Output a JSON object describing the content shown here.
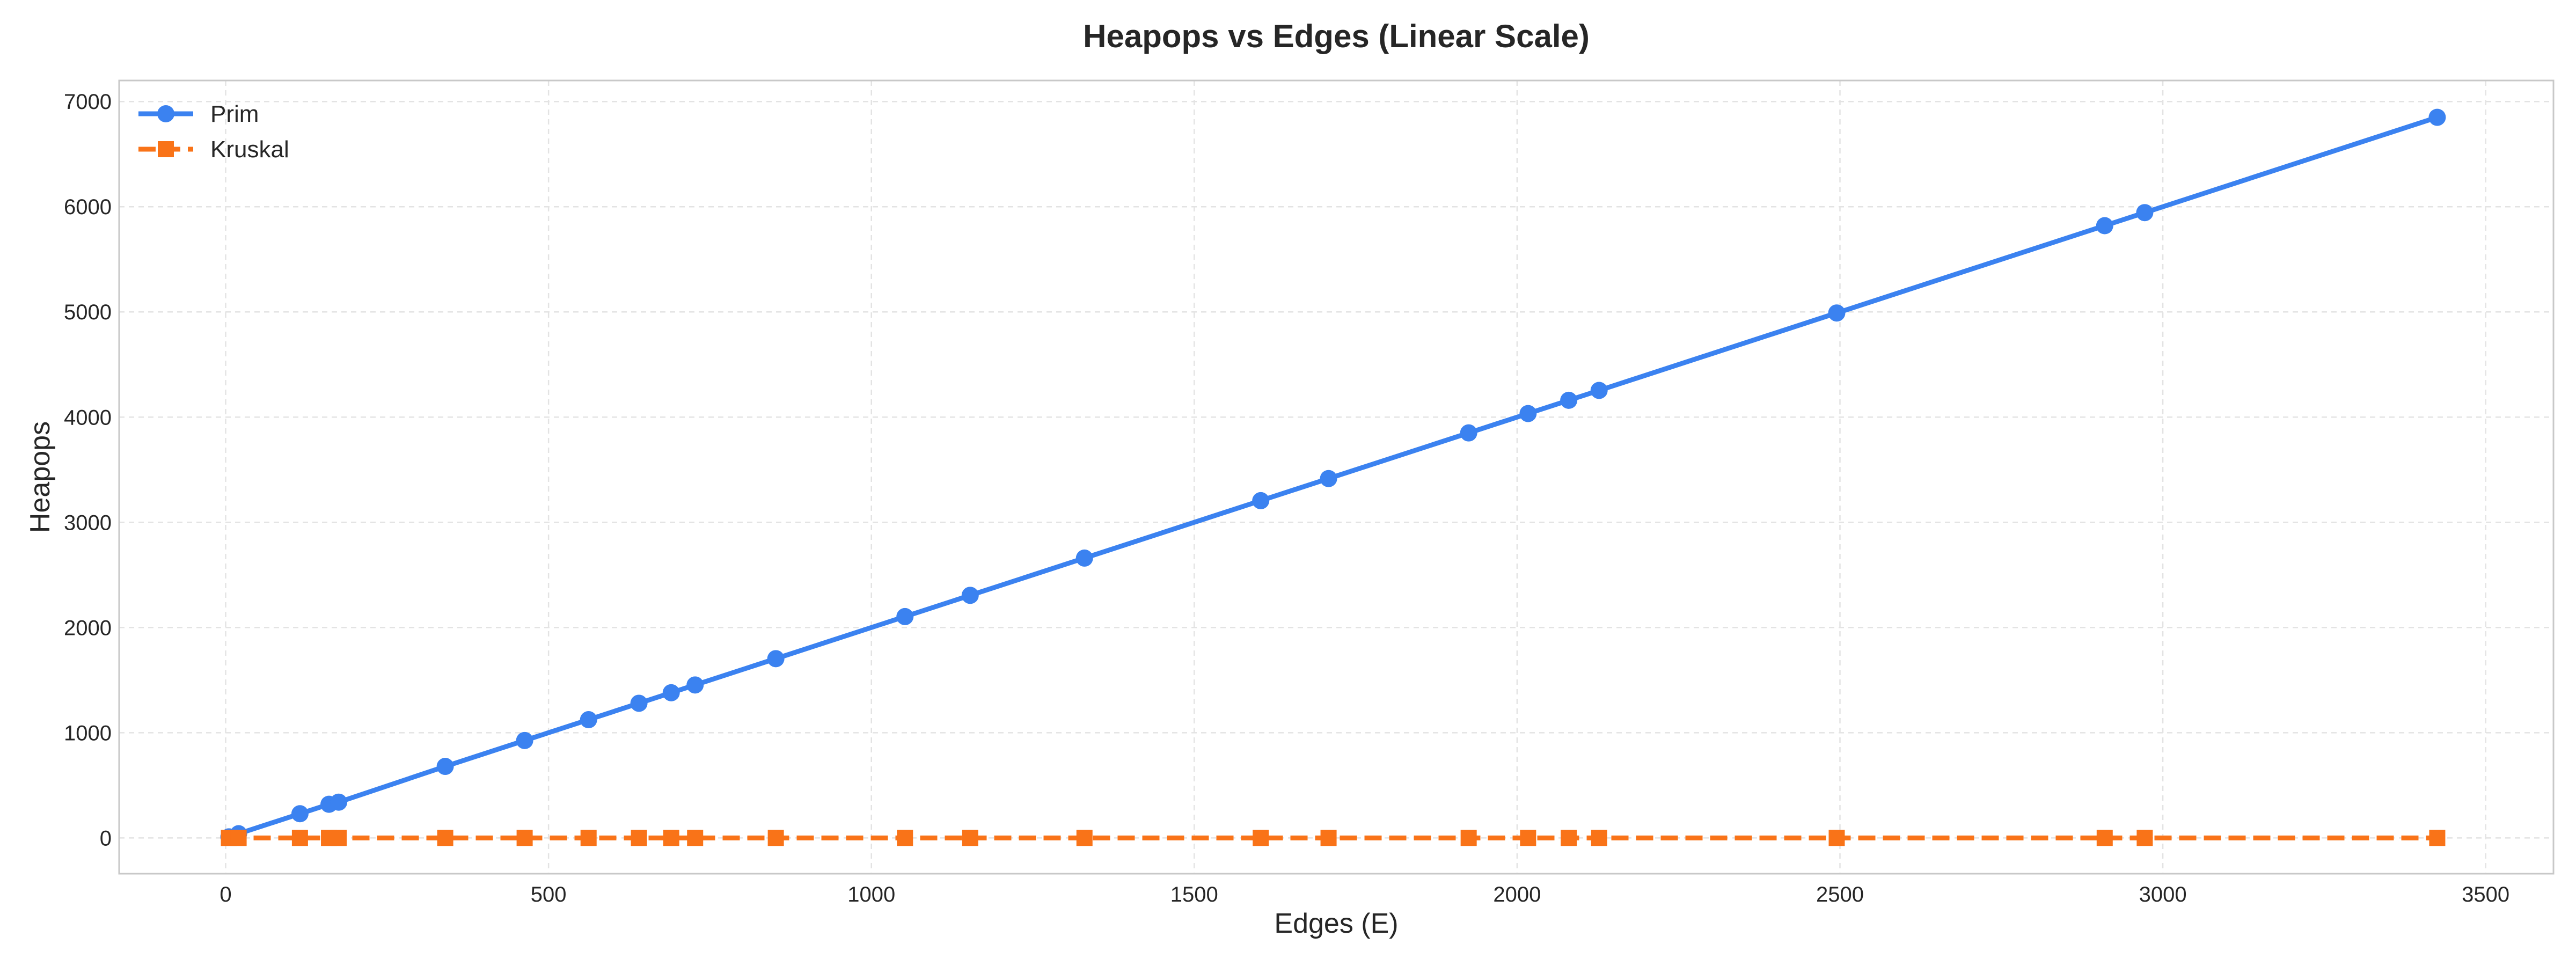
{
  "chart_data": {
    "type": "line",
    "title": "Heapops vs Edges (Linear Scale)",
    "xlabel": "Edges (E)",
    "ylabel": "Heapops",
    "xlim": [
      -165,
      3605
    ],
    "ylim": [
      -340,
      7200
    ],
    "x_ticks": [
      0,
      500,
      1000,
      1500,
      2000,
      2500,
      3000,
      3500
    ],
    "y_ticks": [
      0,
      1000,
      2000,
      3000,
      4000,
      5000,
      6000,
      7000
    ],
    "grid": true,
    "legend_position": "top-left",
    "x": [
      5,
      20,
      115,
      160,
      175,
      340,
      463,
      562,
      640,
      690,
      727,
      852,
      1052,
      1153,
      1330,
      1603,
      1708,
      1925,
      2017,
      2080,
      2127,
      2495,
      2910,
      2972,
      3425
    ],
    "series": [
      {
        "name": "Prim",
        "color": "#3b82f0",
        "marker": "circle",
        "line_style": "solid",
        "values": [
          10,
          40,
          230,
          320,
          340,
          680,
          926,
          1124,
          1280,
          1380,
          1454,
          1704,
          2104,
          2306,
          2660,
          3206,
          3416,
          3850,
          4034,
          4160,
          4254,
          4990,
          5820,
          5944,
          6850
        ]
      },
      {
        "name": "Kruskal",
        "color": "#f97318",
        "marker": "square",
        "line_style": "dashed",
        "values": [
          0,
          0,
          0,
          0,
          0,
          0,
          0,
          0,
          0,
          0,
          0,
          0,
          0,
          0,
          0,
          0,
          0,
          0,
          0,
          0,
          0,
          0,
          0,
          0,
          0
        ]
      }
    ]
  }
}
